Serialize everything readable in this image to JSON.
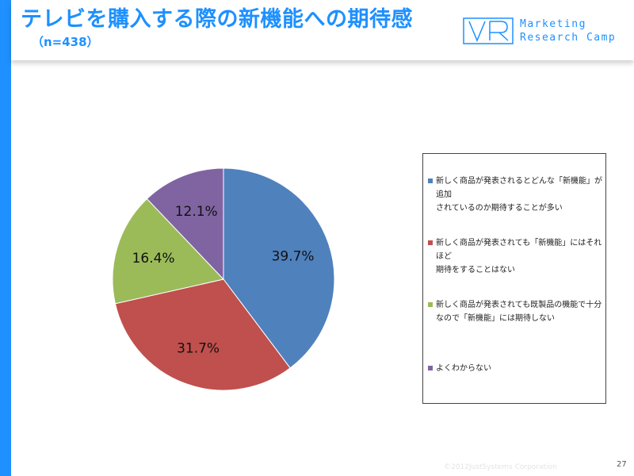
{
  "header": {
    "title": "テレビを購入する際の新機能への期待感",
    "subtitle": "（n=438）",
    "logo_line1": "Marketing",
    "logo_line2": "Research Camp"
  },
  "colors": {
    "accent": "#1e90ff",
    "series": [
      "#4f81bd",
      "#c0504d",
      "#9bbb59",
      "#8064a2"
    ]
  },
  "chart_data": {
    "type": "pie",
    "start_angle_deg": 0,
    "direction": "clockwise",
    "legend_position": "right",
    "slices": [
      {
        "label": "新しく商品が発表されるとどんな「新機能」が追加されているのか期待することが多い",
        "value": 39.7,
        "display": "39.7%",
        "color": "#4f81bd"
      },
      {
        "label": "新しく商品が発表されても「新機能」にはそれほど期待をすることはない",
        "value": 31.7,
        "display": "31.7%",
        "color": "#c0504d"
      },
      {
        "label": "新しく商品が発表されても既製品の機能で十分なので「新機能」には期待しない",
        "value": 16.4,
        "display": "16.4%",
        "color": "#9bbb59"
      },
      {
        "label": "よくわからない",
        "value": 12.1,
        "display": "12.1%",
        "color": "#8064a2"
      }
    ]
  },
  "legend": {
    "items": [
      {
        "line1": "新しく商品が発表されるとどんな「新機能」が追加",
        "line2": "されているのか期待することが多い"
      },
      {
        "line1": "新しく商品が発表されても「新機能」にはそれほど",
        "line2": "期待をすることはない"
      },
      {
        "line1": "新しく商品が発表されても既製品の機能で十分",
        "line2": "なので「新機能」には期待しない"
      },
      {
        "line1": "よくわからない",
        "line2": ""
      }
    ]
  },
  "footer": {
    "copyright": "©2012JustSystems Corporation",
    "page_number": "27"
  }
}
